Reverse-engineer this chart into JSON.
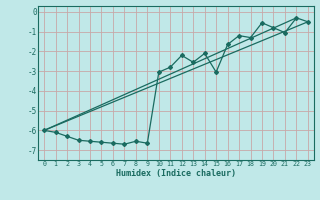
{
  "xlabel": "Humidex (Indice chaleur)",
  "ylabel": "",
  "background_color": "#c0e8e8",
  "grid_color": "#c8a8a8",
  "line_color": "#1a6b60",
  "xlim": [
    -0.5,
    23.5
  ],
  "ylim": [
    -7.5,
    0.3
  ],
  "xticks": [
    0,
    1,
    2,
    3,
    4,
    5,
    6,
    7,
    8,
    9,
    10,
    11,
    12,
    13,
    14,
    15,
    16,
    17,
    18,
    19,
    20,
    21,
    22,
    23
  ],
  "yticks": [
    0,
    -1,
    -2,
    -3,
    -4,
    -5,
    -6,
    -7
  ],
  "data_x": [
    0,
    1,
    2,
    3,
    4,
    5,
    6,
    7,
    8,
    9,
    10,
    11,
    12,
    13,
    14,
    15,
    16,
    17,
    18,
    19,
    20,
    21,
    22,
    23
  ],
  "data_y": [
    -6.0,
    -6.1,
    -6.3,
    -6.5,
    -6.55,
    -6.6,
    -6.65,
    -6.7,
    -6.55,
    -6.65,
    -3.05,
    -2.8,
    -2.2,
    -2.55,
    -2.1,
    -3.05,
    -1.65,
    -1.2,
    -1.3,
    -0.55,
    -0.8,
    -1.05,
    -0.3,
    -0.5
  ],
  "line1_x": [
    0,
    22
  ],
  "line1_y": [
    -6.0,
    -0.3
  ],
  "line2_x": [
    0,
    23
  ],
  "line2_y": [
    -6.0,
    -0.5
  ]
}
